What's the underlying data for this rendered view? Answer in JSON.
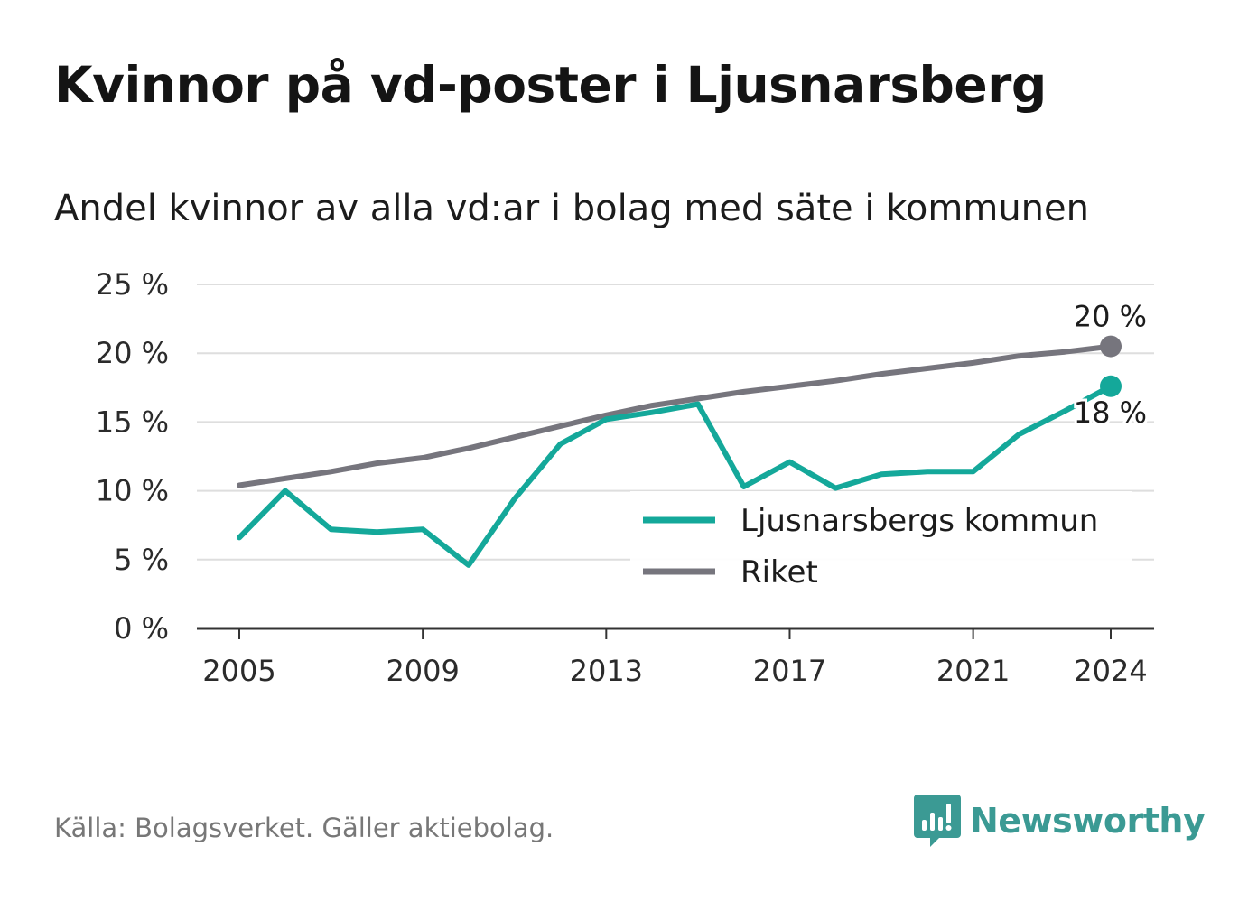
{
  "title": "Kvinnor på vd-poster i Ljusnarsberg",
  "subtitle": "Andel kvinnor av alla vd:ar i bolag med säte i kommunen",
  "source": "Källa: Bolagsverket. Gäller aktiebolag.",
  "brand": {
    "name": "Newsworthy",
    "color": "#3b9a94"
  },
  "chart_data": {
    "type": "line",
    "x": [
      2005,
      2006,
      2007,
      2008,
      2009,
      2010,
      2011,
      2012,
      2013,
      2014,
      2015,
      2016,
      2017,
      2018,
      2019,
      2020,
      2021,
      2022,
      2023,
      2024
    ],
    "x_tick_labels": [
      "2005",
      "2009",
      "2013",
      "2017",
      "2021",
      "2024"
    ],
    "y_tick_labels": [
      "0 %",
      "5 %",
      "10 %",
      "15 %",
      "20 %",
      "25 %"
    ],
    "ylim": [
      0,
      25
    ],
    "grid": true,
    "legend_position": "bottom-right",
    "series": [
      {
        "name": "Ljusnarsbergs kommun",
        "color": "#14a89a",
        "values": [
          6.6,
          10.0,
          7.2,
          7.0,
          7.2,
          4.6,
          9.4,
          13.4,
          15.2,
          15.7,
          16.3,
          10.3,
          12.1,
          10.2,
          11.2,
          11.4,
          11.4,
          14.1,
          15.8,
          17.6
        ],
        "end_label": "18 %"
      },
      {
        "name": "Riket",
        "color": "#76757d",
        "values": [
          10.4,
          10.9,
          11.4,
          12.0,
          12.4,
          13.1,
          13.9,
          14.7,
          15.5,
          16.2,
          16.7,
          17.2,
          17.6,
          18.0,
          18.5,
          18.9,
          19.3,
          19.8,
          20.1,
          20.5
        ],
        "end_label": "20 %"
      }
    ]
  }
}
